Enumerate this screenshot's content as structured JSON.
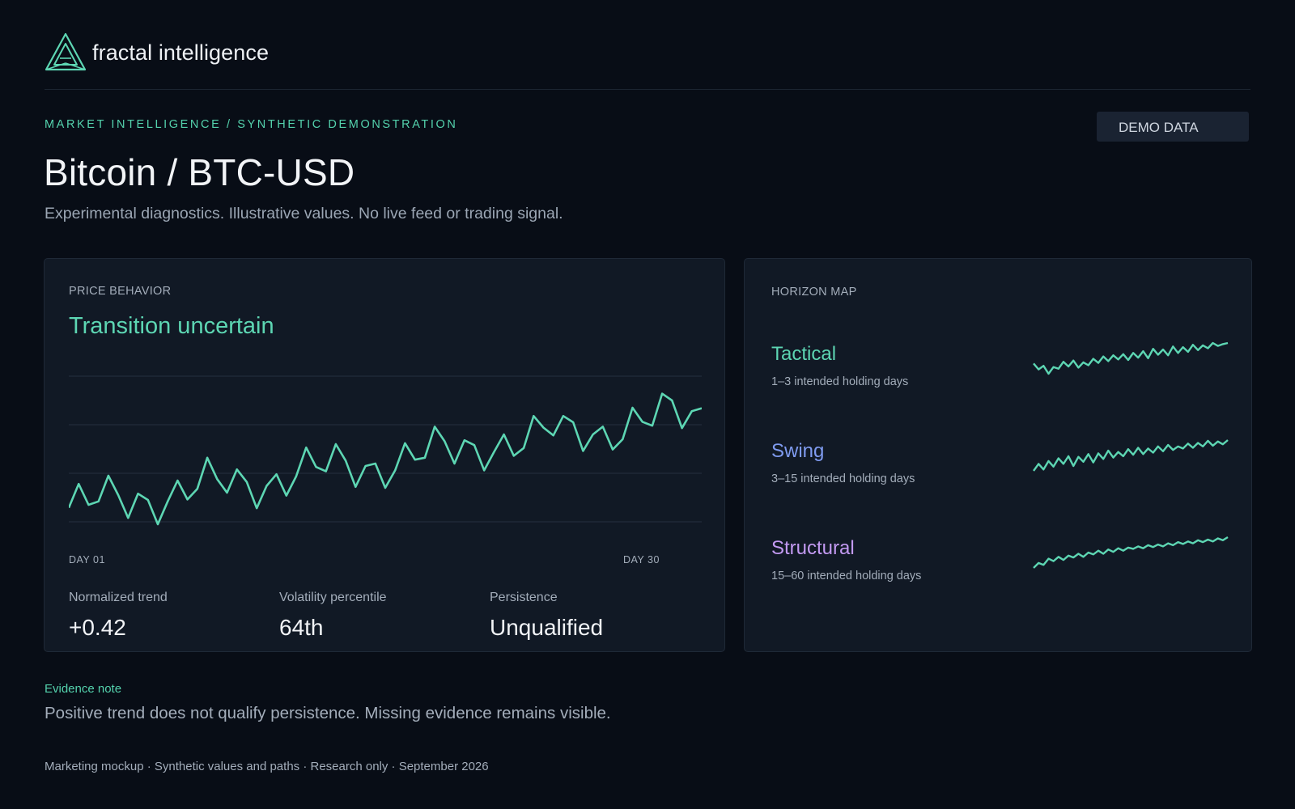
{
  "brand": {
    "name": "fractal intelligence",
    "logo": "triangle-logo-icon"
  },
  "colors": {
    "background": "#080d16",
    "card": "#111925",
    "accent": "#5dd6b3",
    "tactical": "#5dd6b3",
    "swing": "#7f9bf0",
    "structural": "#c39af2",
    "muted": "#a3adba"
  },
  "kicker": "MARKET INTELLIGENCE / SYNTHETIC DEMONSTRATION",
  "badge": "DEMO DATA",
  "title": "Bitcoin / BTC-USD",
  "subtitle": "Experimental diagnostics. Illustrative values. No live feed or trading signal.",
  "price_behavior": {
    "label": "PRICE BEHAVIOR",
    "state": "Transition uncertain",
    "axis_start": "DAY 01",
    "axis_end": "DAY 30",
    "metrics": [
      {
        "label": "Normalized trend",
        "value": "+0.42"
      },
      {
        "label": "Volatility percentile",
        "value": "64th"
      },
      {
        "label": "Persistence",
        "value": "Unqualified"
      }
    ]
  },
  "horizon_map": {
    "label": "HORIZON MAP",
    "rows": [
      {
        "name": "Tactical",
        "desc": "1–3 intended holding days"
      },
      {
        "name": "Swing",
        "desc": "3–15 intended holding days"
      },
      {
        "name": "Structural",
        "desc": "15–60 intended holding days"
      }
    ]
  },
  "chart_data": [
    {
      "type": "line",
      "ylim": [
        0,
        3
      ],
      "grid": true,
      "x_labels": [
        "DAY 01",
        "DAY 30"
      ],
      "series": [
        {
          "values": [
            0.29,
            0.78,
            0.35,
            0.42,
            0.95,
            0.55,
            0.08,
            0.58,
            0.45,
            -0.05,
            0.42,
            0.85,
            0.46,
            0.68,
            1.32,
            0.88,
            0.6,
            1.08,
            0.82,
            0.28,
            0.74,
            0.98,
            0.54,
            0.94,
            1.53,
            1.13,
            1.04,
            1.6,
            1.26,
            0.72,
            1.15,
            1.2,
            0.7,
            1.06,
            1.62,
            1.28,
            1.32,
            1.96,
            1.66,
            1.2,
            1.68,
            1.58,
            1.06,
            1.44,
            1.8,
            1.36,
            1.52,
            2.18,
            1.94,
            1.78,
            2.18,
            2.05,
            1.46,
            1.8,
            1.96,
            1.49,
            1.7,
            2.35,
            2.06,
            1.98,
            2.64,
            2.5,
            1.93,
            2.28,
            2.34
          ]
        }
      ]
    },
    {
      "type": "line",
      "series": [
        {
          "name": "Tactical",
          "values": [
            0.3,
            0.1,
            0.22,
            -0.05,
            0.18,
            0.12,
            0.36,
            0.2,
            0.4,
            0.16,
            0.34,
            0.24,
            0.46,
            0.32,
            0.54,
            0.38,
            0.58,
            0.44,
            0.62,
            0.42,
            0.66,
            0.5,
            0.72,
            0.48,
            0.8,
            0.6,
            0.78,
            0.58,
            0.88,
            0.66,
            0.86,
            0.7,
            0.94,
            0.76,
            0.92,
            0.82,
            1.0,
            0.9,
            0.96,
            1.0
          ]
        },
        {
          "name": "Swing",
          "values": [
            0.1,
            0.3,
            0.14,
            0.38,
            0.22,
            0.46,
            0.3,
            0.52,
            0.24,
            0.5,
            0.36,
            0.58,
            0.34,
            0.6,
            0.44,
            0.68,
            0.48,
            0.64,
            0.52,
            0.72,
            0.56,
            0.76,
            0.58,
            0.74,
            0.62,
            0.8,
            0.66,
            0.84,
            0.7,
            0.8,
            0.74,
            0.88,
            0.76,
            0.9,
            0.8,
            0.96,
            0.82,
            0.94,
            0.86,
            0.98
          ]
        },
        {
          "name": "Structural",
          "values": [
            0.0,
            0.16,
            0.1,
            0.3,
            0.22,
            0.36,
            0.26,
            0.4,
            0.34,
            0.46,
            0.36,
            0.5,
            0.44,
            0.56,
            0.46,
            0.6,
            0.52,
            0.64,
            0.56,
            0.66,
            0.62,
            0.7,
            0.64,
            0.74,
            0.68,
            0.76,
            0.7,
            0.8,
            0.74,
            0.84,
            0.78,
            0.86,
            0.8,
            0.9,
            0.84,
            0.92,
            0.86,
            0.96,
            0.9,
            1.0
          ]
        }
      ]
    }
  ]
}
